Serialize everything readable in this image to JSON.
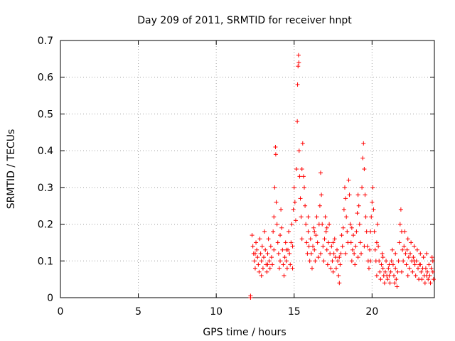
{
  "chart_data": {
    "type": "scatter",
    "title": "Day 209 of 2011, SRMTID for receiver hnpt",
    "xlabel": "GPS time / hours",
    "ylabel": "SRMTID / TECUs",
    "xlim": [
      0,
      24
    ],
    "ylim": [
      0,
      0.7
    ],
    "xticks": [
      0,
      5,
      10,
      15,
      20
    ],
    "xtick_labels": [
      "0",
      "5",
      "10",
      "15",
      "20"
    ],
    "yticks": [
      0,
      0.1,
      0.2,
      0.3,
      0.4,
      0.5,
      0.6,
      0.7
    ],
    "ytick_labels": [
      "0",
      "0.1",
      "0.2",
      "0.3",
      "0.4",
      "0.5",
      "0.6",
      "0.7"
    ],
    "grid": true,
    "marker": "+",
    "color": "#ff0000",
    "series": [
      {
        "points": [
          [
            12.2,
            0.0
          ],
          [
            12.2,
            0.005
          ],
          [
            12.3,
            0.17
          ],
          [
            12.35,
            0.14
          ],
          [
            12.4,
            0.12
          ],
          [
            12.45,
            0.1
          ],
          [
            12.5,
            0.08
          ],
          [
            12.55,
            0.15
          ],
          [
            12.6,
            0.13
          ],
          [
            12.65,
            0.11
          ],
          [
            12.7,
            0.09
          ],
          [
            12.75,
            0.07
          ],
          [
            12.8,
            0.16
          ],
          [
            12.85,
            0.12
          ],
          [
            12.9,
            0.1
          ],
          [
            12.95,
            0.14
          ],
          [
            13.0,
            0.08
          ],
          [
            13.05,
            0.11
          ],
          [
            13.1,
            0.18
          ],
          [
            13.15,
            0.13
          ],
          [
            13.2,
            0.09
          ],
          [
            13.25,
            0.07
          ],
          [
            13.3,
            0.12
          ],
          [
            13.35,
            0.16
          ],
          [
            13.4,
            0.1
          ],
          [
            13.45,
            0.08
          ],
          [
            13.5,
            0.14
          ],
          [
            13.55,
            0.11
          ],
          [
            13.6,
            0.09
          ],
          [
            13.65,
            0.18
          ],
          [
            13.7,
            0.22
          ],
          [
            13.75,
            0.3
          ],
          [
            13.8,
            0.41
          ],
          [
            13.82,
            0.39
          ],
          [
            13.85,
            0.26
          ],
          [
            13.9,
            0.2
          ],
          [
            13.95,
            0.15
          ],
          [
            14.0,
            0.12
          ],
          [
            14.05,
            0.08
          ],
          [
            14.1,
            0.1
          ],
          [
            14.15,
            0.24
          ],
          [
            14.2,
            0.19
          ],
          [
            14.25,
            0.13
          ],
          [
            14.3,
            0.09
          ],
          [
            14.35,
            0.06
          ],
          [
            14.4,
            0.11
          ],
          [
            14.45,
            0.15
          ],
          [
            14.5,
            0.1
          ],
          [
            14.55,
            0.08
          ],
          [
            14.6,
            0.13
          ],
          [
            14.65,
            0.18
          ],
          [
            14.7,
            0.12
          ],
          [
            14.75,
            0.09
          ],
          [
            14.8,
            0.15
          ],
          [
            14.85,
            0.2
          ],
          [
            14.9,
            0.14
          ],
          [
            14.95,
            0.24
          ],
          [
            15.0,
            0.3
          ],
          [
            15.05,
            0.26
          ],
          [
            15.1,
            0.21
          ],
          [
            15.15,
            0.35
          ],
          [
            15.2,
            0.48
          ],
          [
            15.22,
            0.58
          ],
          [
            15.25,
            0.63
          ],
          [
            15.28,
            0.66
          ],
          [
            15.3,
            0.64
          ],
          [
            15.32,
            0.4
          ],
          [
            15.35,
            0.33
          ],
          [
            15.4,
            0.27
          ],
          [
            15.45,
            0.22
          ],
          [
            15.5,
            0.35
          ],
          [
            15.55,
            0.42
          ],
          [
            15.6,
            0.33
          ],
          [
            15.65,
            0.3
          ],
          [
            15.7,
            0.25
          ],
          [
            15.75,
            0.2
          ],
          [
            15.8,
            0.15
          ],
          [
            15.85,
            0.12
          ],
          [
            15.9,
            0.18
          ],
          [
            15.95,
            0.14
          ],
          [
            16.0,
            0.1
          ],
          [
            16.05,
            0.16
          ],
          [
            16.1,
            0.12
          ],
          [
            16.15,
            0.08
          ],
          [
            16.2,
            0.14
          ],
          [
            16.25,
            0.19
          ],
          [
            16.3,
            0.13
          ],
          [
            16.35,
            0.1
          ],
          [
            16.4,
            0.17
          ],
          [
            16.45,
            0.22
          ],
          [
            16.5,
            0.15
          ],
          [
            16.55,
            0.11
          ],
          [
            16.6,
            0.2
          ],
          [
            16.65,
            0.25
          ],
          [
            16.7,
            0.34
          ],
          [
            16.75,
            0.28
          ],
          [
            16.8,
            0.2
          ],
          [
            16.85,
            0.14
          ],
          [
            16.9,
            0.1
          ],
          [
            16.95,
            0.16
          ],
          [
            17.0,
            0.22
          ],
          [
            17.05,
            0.18
          ],
          [
            17.1,
            0.13
          ],
          [
            17.15,
            0.09
          ],
          [
            17.2,
            0.15
          ],
          [
            17.25,
            0.2
          ],
          [
            17.3,
            0.12
          ],
          [
            17.35,
            0.08
          ],
          [
            17.4,
            0.14
          ],
          [
            17.45,
            0.1
          ],
          [
            17.5,
            0.07
          ],
          [
            17.55,
            0.12
          ],
          [
            17.6,
            0.16
          ],
          [
            17.65,
            0.11
          ],
          [
            17.7,
            0.08
          ],
          [
            17.75,
            0.13
          ],
          [
            17.8,
            0.1
          ],
          [
            17.85,
            0.06
          ],
          [
            17.9,
            0.04
          ],
          [
            17.95,
            0.09
          ],
          [
            18.0,
            0.12
          ],
          [
            18.05,
            0.17
          ],
          [
            18.1,
            0.14
          ],
          [
            18.15,
            0.19
          ],
          [
            18.2,
            0.24
          ],
          [
            18.25,
            0.3
          ],
          [
            18.3,
            0.27
          ],
          [
            18.35,
            0.22
          ],
          [
            18.4,
            0.18
          ],
          [
            18.45,
            0.15
          ],
          [
            18.5,
            0.32
          ],
          [
            18.55,
            0.28
          ],
          [
            18.6,
            0.2
          ],
          [
            18.65,
            0.15
          ],
          [
            18.7,
            0.1
          ],
          [
            18.75,
            0.13
          ],
          [
            18.8,
            0.17
          ],
          [
            18.85,
            0.12
          ],
          [
            18.9,
            0.09
          ],
          [
            18.95,
            0.14
          ],
          [
            19.0,
            0.18
          ],
          [
            19.05,
            0.23
          ],
          [
            19.1,
            0.28
          ],
          [
            19.15,
            0.25
          ],
          [
            19.2,
            0.2
          ],
          [
            19.25,
            0.15
          ],
          [
            19.3,
            0.12
          ],
          [
            19.35,
            0.3
          ],
          [
            19.4,
            0.38
          ],
          [
            19.45,
            0.42
          ],
          [
            19.5,
            0.35
          ],
          [
            19.55,
            0.28
          ],
          [
            19.6,
            0.22
          ],
          [
            19.65,
            0.18
          ],
          [
            19.7,
            0.14
          ],
          [
            19.75,
            0.1
          ],
          [
            19.8,
            0.08
          ],
          [
            19.85,
            0.13
          ],
          [
            19.9,
            0.18
          ],
          [
            19.95,
            0.22
          ],
          [
            20.0,
            0.26
          ],
          [
            20.05,
            0.3
          ],
          [
            20.1,
            0.24
          ],
          [
            20.15,
            0.18
          ],
          [
            20.2,
            0.13
          ],
          [
            20.25,
            0.1
          ],
          [
            20.3,
            0.15
          ],
          [
            20.35,
            0.2
          ],
          [
            20.4,
            0.14
          ],
          [
            20.45,
            0.1
          ],
          [
            20.5,
            0.07
          ],
          [
            20.55,
            0.05
          ],
          [
            20.6,
            0.09
          ],
          [
            20.65,
            0.12
          ],
          [
            20.7,
            0.08
          ],
          [
            20.75,
            0.06
          ],
          [
            20.8,
            0.04
          ],
          [
            20.85,
            0.07
          ],
          [
            20.9,
            0.1
          ],
          [
            20.95,
            0.06
          ],
          [
            21.0,
            0.05
          ],
          [
            21.05,
            0.08
          ],
          [
            21.1,
            0.06
          ],
          [
            21.15,
            0.04
          ],
          [
            21.2,
            0.07
          ],
          [
            21.25,
            0.1
          ],
          [
            21.3,
            0.13
          ],
          [
            21.35,
            0.09
          ],
          [
            21.4,
            0.06
          ],
          [
            21.45,
            0.04
          ],
          [
            21.5,
            0.08
          ],
          [
            21.55,
            0.05
          ],
          [
            21.6,
            0.03
          ],
          [
            21.65,
            0.07
          ],
          [
            21.7,
            0.1
          ],
          [
            21.75,
            0.15
          ],
          [
            21.8,
            0.2
          ],
          [
            21.85,
            0.24
          ],
          [
            21.9,
            0.18
          ],
          [
            21.95,
            0.13
          ],
          [
            22.0,
            0.1
          ],
          [
            22.05,
            0.14
          ],
          [
            22.1,
            0.18
          ],
          [
            22.15,
            0.12
          ],
          [
            22.2,
            0.09
          ],
          [
            22.25,
            0.13
          ],
          [
            22.3,
            0.16
          ],
          [
            22.35,
            0.11
          ],
          [
            22.4,
            0.08
          ],
          [
            22.45,
            0.12
          ],
          [
            22.5,
            0.15
          ],
          [
            22.55,
            0.1
          ],
          [
            22.6,
            0.07
          ],
          [
            22.65,
            0.11
          ],
          [
            22.7,
            0.14
          ],
          [
            22.75,
            0.09
          ],
          [
            22.8,
            0.06
          ],
          [
            22.85,
            0.1
          ],
          [
            22.9,
            0.13
          ],
          [
            22.95,
            0.08
          ],
          [
            23.0,
            0.05
          ],
          [
            23.05,
            0.09
          ],
          [
            23.1,
            0.12
          ],
          [
            23.15,
            0.07
          ],
          [
            23.2,
            0.05
          ],
          [
            23.25,
            0.08
          ],
          [
            23.3,
            0.11
          ],
          [
            23.35,
            0.06
          ],
          [
            23.4,
            0.04
          ],
          [
            23.45,
            0.08
          ],
          [
            23.5,
            0.12
          ],
          [
            23.55,
            0.07
          ],
          [
            23.6,
            0.05
          ],
          [
            23.65,
            0.09
          ],
          [
            23.7,
            0.06
          ],
          [
            23.75,
            0.04
          ],
          [
            23.8,
            0.08
          ],
          [
            23.85,
            0.11
          ],
          [
            23.9,
            0.07
          ],
          [
            23.95,
            0.05
          ],
          [
            12.5,
            0.12
          ],
          [
            12.9,
            0.06
          ],
          [
            13.3,
            0.09
          ],
          [
            13.7,
            0.13
          ],
          [
            14.1,
            0.17
          ],
          [
            14.5,
            0.13
          ],
          [
            14.9,
            0.08
          ],
          [
            15.5,
            0.16
          ],
          [
            15.9,
            0.22
          ],
          [
            16.3,
            0.18
          ],
          [
            16.7,
            0.12
          ],
          [
            17.1,
            0.19
          ],
          [
            17.5,
            0.15
          ],
          [
            17.9,
            0.11
          ],
          [
            18.3,
            0.12
          ],
          [
            18.7,
            0.19
          ],
          [
            19.1,
            0.11
          ],
          [
            19.5,
            0.14
          ],
          [
            19.9,
            0.1
          ],
          [
            20.3,
            0.06
          ],
          [
            20.7,
            0.11
          ],
          [
            21.1,
            0.09
          ],
          [
            21.5,
            0.12
          ],
          [
            21.9,
            0.07
          ],
          [
            22.3,
            0.06
          ],
          [
            22.7,
            0.1
          ],
          [
            23.1,
            0.09
          ],
          [
            23.5,
            0.06
          ],
          [
            23.9,
            0.1
          ]
        ]
      }
    ]
  }
}
